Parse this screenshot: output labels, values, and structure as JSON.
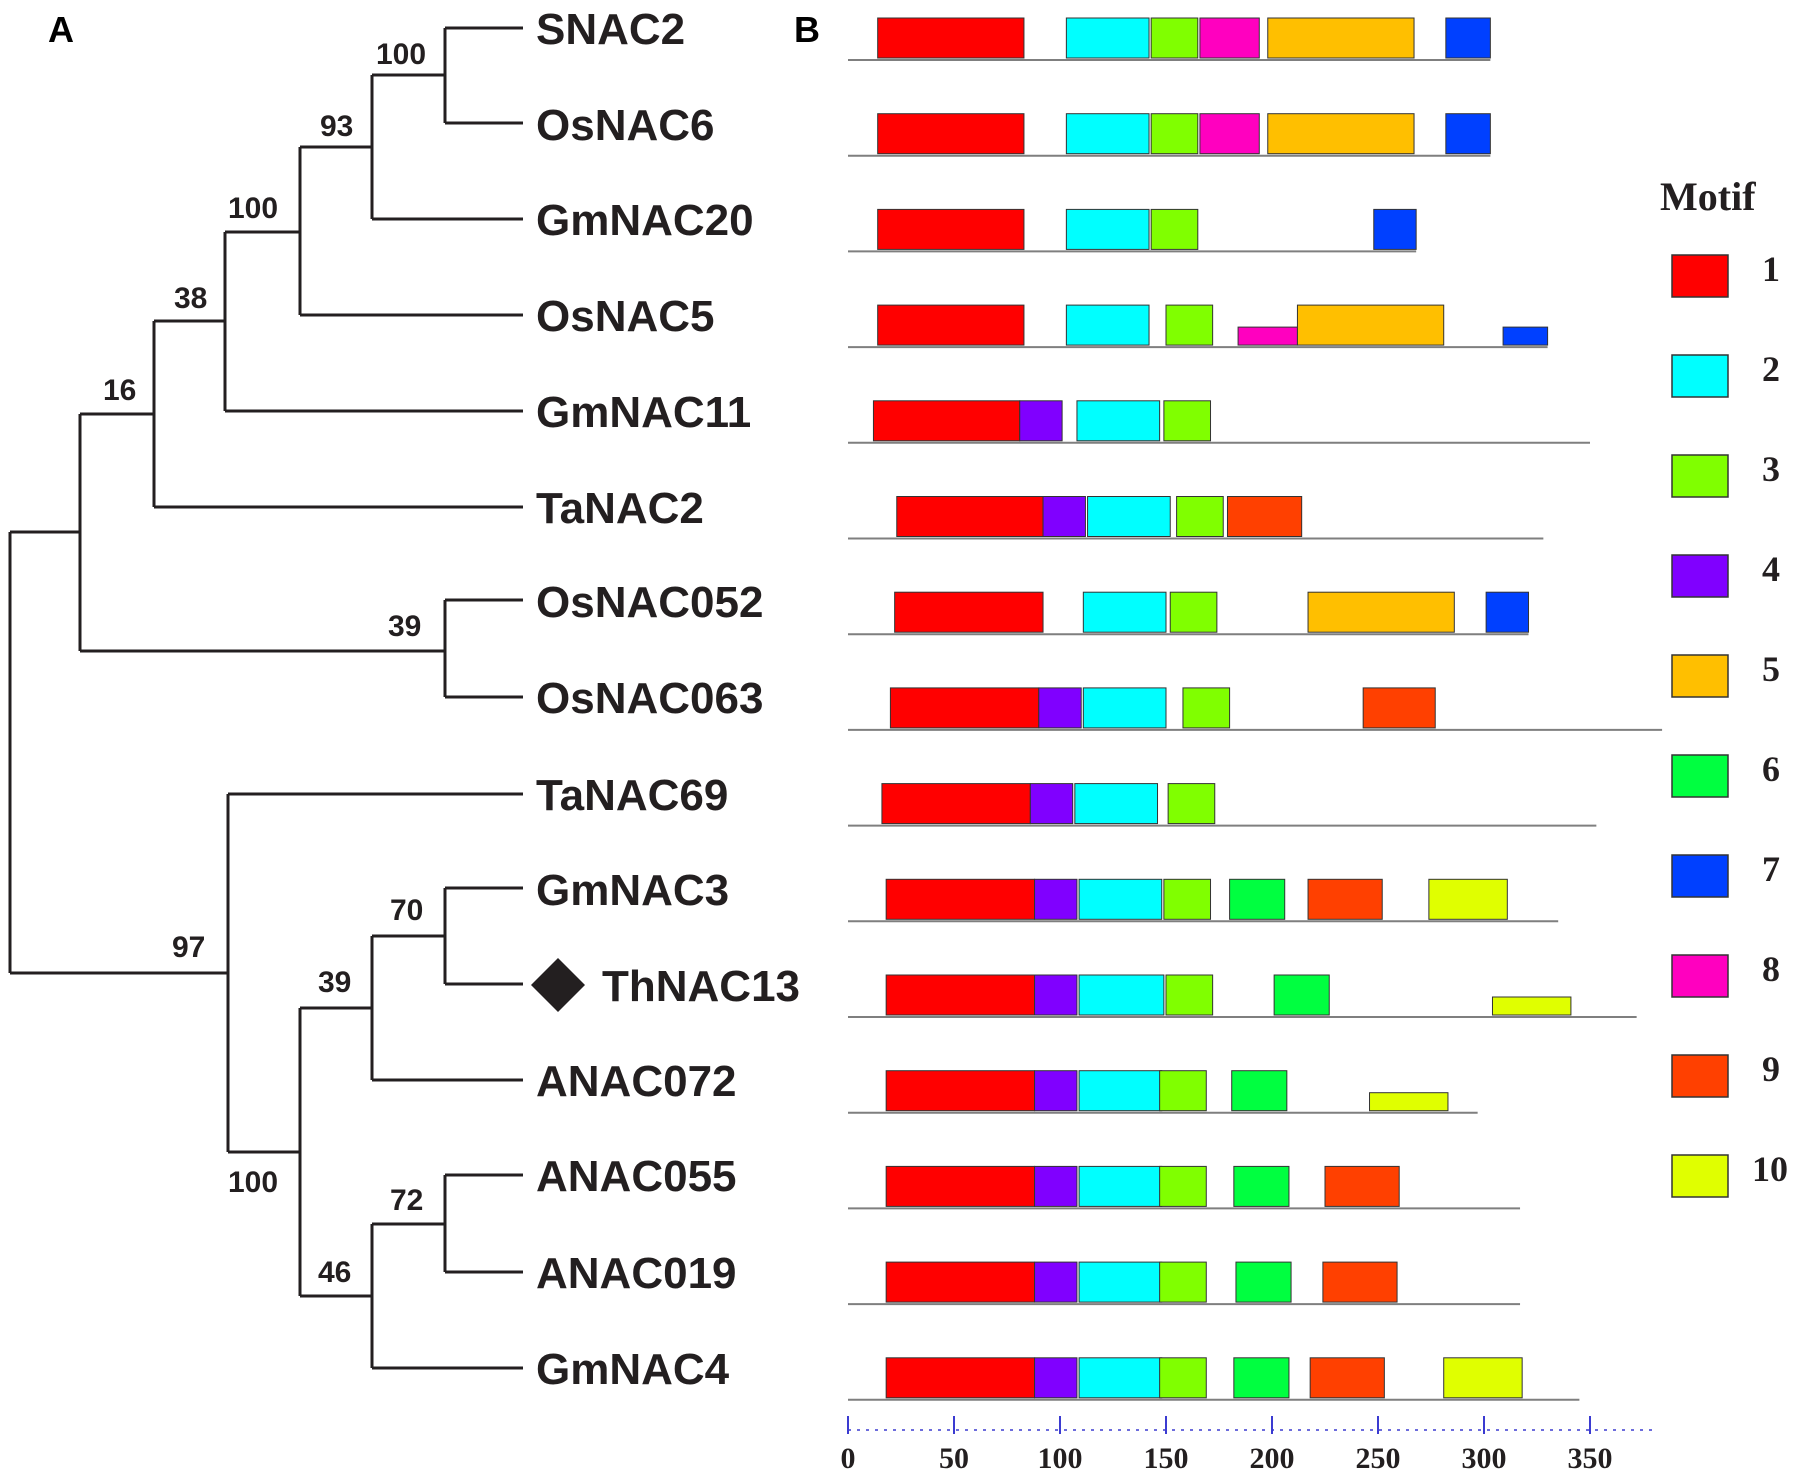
{
  "panels": {
    "a": "A",
    "b": "B"
  },
  "legend": {
    "title": "Motif",
    "items": [
      {
        "id": 1,
        "label": "1",
        "color": "#ff0000"
      },
      {
        "id": 2,
        "label": "2",
        "color": "#00ffff"
      },
      {
        "id": 3,
        "label": "3",
        "color": "#80ff00"
      },
      {
        "id": 4,
        "label": "4",
        "color": "#8000ff"
      },
      {
        "id": 5,
        "label": "5",
        "color": "#ffbf00"
      },
      {
        "id": 6,
        "label": "6",
        "color": "#00ff40"
      },
      {
        "id": 7,
        "label": "7",
        "color": "#0040ff"
      },
      {
        "id": 8,
        "label": "8",
        "color": "#ff00bf"
      },
      {
        "id": 9,
        "label": "9",
        "color": "#ff4000"
      },
      {
        "id": 10,
        "label": "10",
        "color": "#e0ff00"
      }
    ]
  },
  "tree": {
    "taxa": [
      "SNAC2",
      "OsNAC6",
      "GmNAC20",
      "OsNAC5",
      "GmNAC11",
      "TaNAC2",
      "OsNAC052",
      "OsNAC063",
      "TaNAC69",
      "GmNAC3",
      "ThNAC13",
      "ANAC072",
      "ANAC055",
      "ANAC019",
      "GmNAC4"
    ],
    "highlight": "ThNAC13",
    "bootstrap": [
      "100",
      "93",
      "100",
      "38",
      "16",
      "39",
      "97",
      "70",
      "39",
      "100",
      "72",
      "46"
    ]
  },
  "chart_data": {
    "type": "motif-map",
    "axis": {
      "min": 0,
      "max": 380,
      "ticks": [
        0,
        50,
        100,
        150,
        200,
        250,
        300,
        350
      ]
    },
    "sequences": [
      {
        "name": "SNAC2",
        "length": 303,
        "motifs": [
          [
            1,
            14,
            83
          ],
          [
            2,
            103,
            142
          ],
          [
            3,
            143,
            165
          ],
          [
            8,
            166,
            194
          ],
          [
            5,
            198,
            267
          ],
          [
            7,
            282,
            303
          ]
        ]
      },
      {
        "name": "OsNAC6",
        "length": 303,
        "motifs": [
          [
            1,
            14,
            83
          ],
          [
            2,
            103,
            142
          ],
          [
            3,
            143,
            165
          ],
          [
            8,
            166,
            194
          ],
          [
            5,
            198,
            267
          ],
          [
            7,
            282,
            303
          ]
        ]
      },
      {
        "name": "GmNAC20",
        "length": 268,
        "motifs": [
          [
            1,
            14,
            83
          ],
          [
            2,
            103,
            142
          ],
          [
            3,
            143,
            165
          ],
          [
            7,
            248,
            268
          ]
        ]
      },
      {
        "name": "OsNAC5",
        "length": 330,
        "motifs": [
          [
            1,
            14,
            83
          ],
          [
            2,
            103,
            142
          ],
          [
            3,
            150,
            172
          ],
          [
            8,
            184,
            212
          ],
          [
            5,
            212,
            281
          ],
          [
            7,
            309,
            330
          ]
        ]
      },
      {
        "name": "GmNAC11",
        "length": 350,
        "motifs": [
          [
            1,
            12,
            81
          ],
          [
            4,
            81,
            101
          ],
          [
            2,
            108,
            147
          ],
          [
            3,
            149,
            171
          ]
        ]
      },
      {
        "name": "TaNAC2",
        "length": 328,
        "motifs": [
          [
            1,
            23,
            92
          ],
          [
            4,
            92,
            112
          ],
          [
            2,
            113,
            152
          ],
          [
            3,
            155,
            177
          ],
          [
            9,
            179,
            214
          ]
        ]
      },
      {
        "name": "OsNAC052",
        "length": 321,
        "motifs": [
          [
            1,
            22,
            92
          ],
          [
            2,
            111,
            150
          ],
          [
            3,
            152,
            174
          ],
          [
            5,
            217,
            286
          ],
          [
            7,
            301,
            321
          ]
        ]
      },
      {
        "name": "OsNAC063",
        "length": 384,
        "motifs": [
          [
            1,
            20,
            90
          ],
          [
            4,
            90,
            110
          ],
          [
            2,
            111,
            150
          ],
          [
            3,
            158,
            180
          ],
          [
            9,
            243,
            277
          ]
        ]
      },
      {
        "name": "TaNAC69",
        "length": 353,
        "motifs": [
          [
            1,
            16,
            86
          ],
          [
            4,
            86,
            106
          ],
          [
            2,
            107,
            146
          ],
          [
            3,
            151,
            173
          ]
        ]
      },
      {
        "name": "GmNAC3",
        "length": 335,
        "motifs": [
          [
            1,
            18,
            88
          ],
          [
            4,
            88,
            108
          ],
          [
            2,
            109,
            148
          ],
          [
            3,
            149,
            171
          ],
          [
            6,
            180,
            206
          ],
          [
            9,
            217,
            252
          ],
          [
            10,
            274,
            311
          ]
        ]
      },
      {
        "name": "ThNAC13",
        "length": 372,
        "motifs": [
          [
            1,
            18,
            88
          ],
          [
            4,
            88,
            108
          ],
          [
            2,
            109,
            149
          ],
          [
            3,
            150,
            172
          ],
          [
            6,
            201,
            227
          ],
          [
            10,
            304,
            341
          ]
        ]
      },
      {
        "name": "ANAC072",
        "length": 297,
        "motifs": [
          [
            1,
            18,
            88
          ],
          [
            4,
            88,
            108
          ],
          [
            2,
            109,
            148
          ],
          [
            3,
            147,
            169
          ],
          [
            6,
            181,
            207
          ],
          [
            10,
            246,
            283
          ]
        ]
      },
      {
        "name": "ANAC055",
        "length": 317,
        "motifs": [
          [
            1,
            18,
            88
          ],
          [
            4,
            88,
            108
          ],
          [
            2,
            109,
            148
          ],
          [
            3,
            147,
            169
          ],
          [
            6,
            182,
            208
          ],
          [
            9,
            225,
            260
          ]
        ]
      },
      {
        "name": "ANAC019",
        "length": 317,
        "motifs": [
          [
            1,
            18,
            88
          ],
          [
            4,
            88,
            108
          ],
          [
            2,
            109,
            148
          ],
          [
            3,
            147,
            169
          ],
          [
            6,
            183,
            209
          ],
          [
            9,
            224,
            259
          ]
        ]
      },
      {
        "name": "GmNAC4",
        "length": 345,
        "motifs": [
          [
            1,
            18,
            88
          ],
          [
            4,
            88,
            108
          ],
          [
            2,
            109,
            148
          ],
          [
            3,
            147,
            169
          ],
          [
            6,
            182,
            208
          ],
          [
            9,
            218,
            253
          ],
          [
            10,
            281,
            318
          ]
        ]
      }
    ]
  }
}
